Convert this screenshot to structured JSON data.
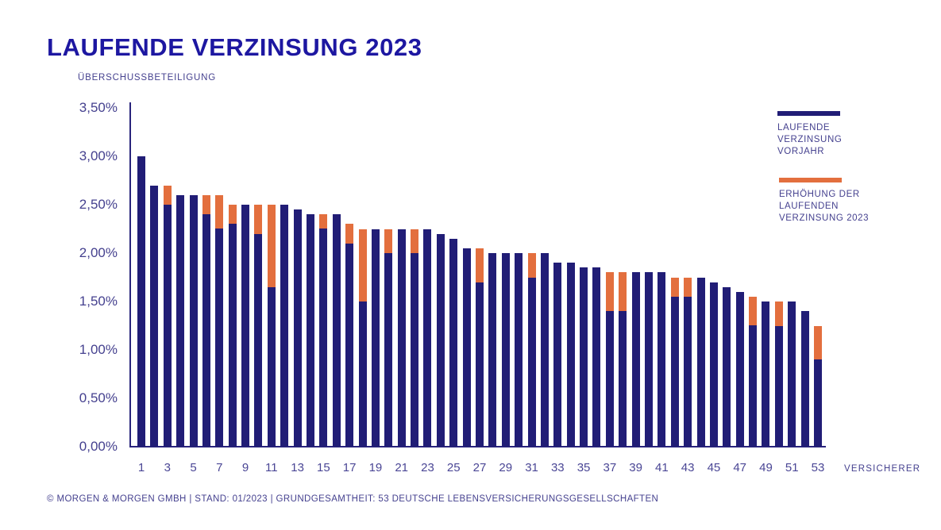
{
  "title": "LAUFENDE VERZINSUNG 2023",
  "footer": "© MORGEN & MORGEN GMBH | STAND: 01/2023 | GRUNDGESAMTHEIT: 53 DEUTSCHE LEBENSVERSICHERUNGSGESELLSCHAFTEN",
  "colors": {
    "title": "#1d17a1",
    "bar_blue": "#211d76",
    "bar_orange": "#e36f3e",
    "axis": "#29247c",
    "text": "#45418f"
  },
  "legend": {
    "items": [
      {
        "label": "LAUFENDE VERZINSUNG VORJAHR",
        "color": "#211d76"
      },
      {
        "label": "ERHÖHUNG DER LAUFENDEN VERZINSUNG 2023",
        "color": "#e36f3e"
      }
    ]
  },
  "chart_data": {
    "type": "bar",
    "stacked": true,
    "title": "LAUFENDE VERZINSUNG 2023",
    "ylabel": "ÜBERSCHUSSBETEILIGUNG",
    "xlabel": "VERSICHERER",
    "ylim": [
      0,
      3.5
    ],
    "grid": false,
    "legend_position": "right",
    "ytick_values": [
      3.5,
      3.0,
      2.5,
      2.0,
      1.5,
      1.0,
      0.5,
      0.0
    ],
    "ytick_labels": [
      "3,50%",
      "3,00%",
      "2,50%",
      "2,00%",
      "1,50%",
      "1,00%",
      "0,50%",
      "0,00%"
    ],
    "x": [
      1,
      2,
      3,
      4,
      5,
      6,
      7,
      8,
      9,
      10,
      11,
      12,
      13,
      14,
      15,
      16,
      17,
      18,
      19,
      20,
      21,
      22,
      23,
      24,
      25,
      26,
      27,
      28,
      29,
      30,
      31,
      32,
      33,
      34,
      35,
      36,
      37,
      38,
      39,
      40,
      41,
      42,
      43,
      44,
      45,
      46,
      47,
      48,
      49,
      50,
      51,
      52,
      53
    ],
    "xtick_labels": [
      "1",
      "3",
      "5",
      "7",
      "9",
      "11",
      "13",
      "15",
      "17",
      "19",
      "21",
      "23",
      "25",
      "27",
      "29",
      "31",
      "33",
      "35",
      "37",
      "39",
      "41",
      "43",
      "45",
      "47",
      "49",
      "51",
      "53"
    ],
    "series": [
      {
        "name": "LAUFENDE VERZINSUNG VORJAHR",
        "color": "#211d76",
        "values": [
          3.0,
          2.7,
          2.5,
          2.6,
          2.6,
          2.4,
          2.25,
          2.3,
          2.5,
          2.2,
          1.65,
          2.5,
          2.45,
          2.4,
          2.25,
          2.4,
          2.1,
          1.5,
          2.25,
          2.0,
          2.25,
          2.0,
          2.25,
          2.2,
          2.15,
          2.05,
          1.7,
          2.0,
          2.0,
          2.0,
          1.75,
          2.0,
          1.9,
          1.9,
          1.85,
          1.85,
          1.4,
          1.4,
          1.8,
          1.8,
          1.8,
          1.55,
          1.55,
          1.75,
          1.7,
          1.65,
          1.6,
          1.25,
          1.5,
          1.25,
          1.5,
          1.4,
          0.9
        ]
      },
      {
        "name": "ERHÖHUNG DER LAUFENDEN VERZINSUNG 2023",
        "color": "#e36f3e",
        "values": [
          0,
          0,
          0.2,
          0,
          0,
          0.2,
          0.35,
          0.2,
          0,
          0.3,
          0.85,
          0,
          0,
          0,
          0.15,
          0,
          0.2,
          0.75,
          0,
          0.25,
          0,
          0.25,
          0,
          0,
          0,
          0,
          0.35,
          0,
          0,
          0,
          0.25,
          0,
          0,
          0,
          0,
          0,
          0.4,
          0.4,
          0,
          0,
          0,
          0.2,
          0.2,
          0,
          0,
          0,
          0,
          0.3,
          0,
          0.25,
          0,
          0,
          0.35
        ]
      }
    ]
  }
}
